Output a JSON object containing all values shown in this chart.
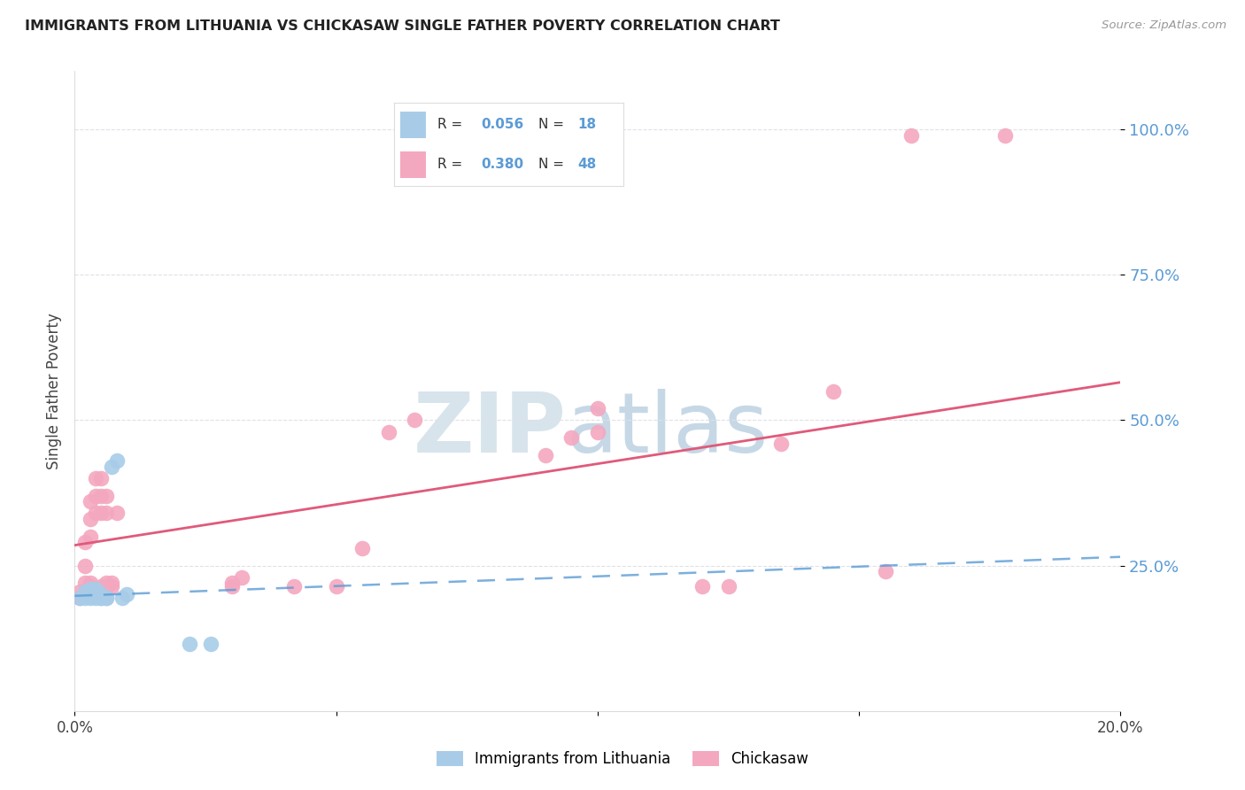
{
  "title": "IMMIGRANTS FROM LITHUANIA VS CHICKASAW SINGLE FATHER POVERTY CORRELATION CHART",
  "source": "Source: ZipAtlas.com",
  "ylabel": "Single Father Poverty",
  "xlim": [
    0.0,
    0.2
  ],
  "ylim": [
    0.0,
    1.1
  ],
  "yticks": [
    0.25,
    0.5,
    0.75,
    1.0
  ],
  "ytick_labels": [
    "25.0%",
    "50.0%",
    "75.0%",
    "100.0%"
  ],
  "xticks": [
    0.0,
    0.05,
    0.1,
    0.15,
    0.2
  ],
  "xtick_labels": [
    "0.0%",
    "",
    "",
    "",
    "20.0%"
  ],
  "legend_blue_r": "0.056",
  "legend_blue_n": "18",
  "legend_pink_r": "0.380",
  "legend_pink_n": "48",
  "legend_label_blue": "Immigrants from Lithuania",
  "legend_label_pink": "Chickasaw",
  "blue_color": "#a8cce8",
  "pink_color": "#f4a8bf",
  "blue_line_color": "#5b9bd5",
  "pink_line_color": "#e05a7a",
  "label_color": "#5b9bd5",
  "watermark_color": "#dce8f0",
  "background_color": "#ffffff",
  "grid_color": "#e0e0e8",
  "blue_scatter": [
    [
      0.001,
      0.195
    ],
    [
      0.002,
      0.195
    ],
    [
      0.002,
      0.205
    ],
    [
      0.003,
      0.195
    ],
    [
      0.003,
      0.21
    ],
    [
      0.004,
      0.195
    ],
    [
      0.004,
      0.21
    ],
    [
      0.005,
      0.195
    ],
    [
      0.005,
      0.195
    ],
    [
      0.005,
      0.2
    ],
    [
      0.006,
      0.195
    ],
    [
      0.006,
      0.195
    ],
    [
      0.007,
      0.42
    ],
    [
      0.008,
      0.43
    ],
    [
      0.009,
      0.195
    ],
    [
      0.01,
      0.2
    ],
    [
      0.022,
      0.115
    ],
    [
      0.026,
      0.115
    ]
  ],
  "pink_scatter": [
    [
      0.001,
      0.195
    ],
    [
      0.001,
      0.205
    ],
    [
      0.002,
      0.2
    ],
    [
      0.002,
      0.22
    ],
    [
      0.002,
      0.25
    ],
    [
      0.002,
      0.29
    ],
    [
      0.003,
      0.2
    ],
    [
      0.003,
      0.215
    ],
    [
      0.003,
      0.22
    ],
    [
      0.003,
      0.3
    ],
    [
      0.003,
      0.33
    ],
    [
      0.003,
      0.36
    ],
    [
      0.004,
      0.2
    ],
    [
      0.004,
      0.21
    ],
    [
      0.004,
      0.34
    ],
    [
      0.004,
      0.37
    ],
    [
      0.004,
      0.4
    ],
    [
      0.005,
      0.2
    ],
    [
      0.005,
      0.215
    ],
    [
      0.005,
      0.34
    ],
    [
      0.005,
      0.37
    ],
    [
      0.005,
      0.4
    ],
    [
      0.006,
      0.215
    ],
    [
      0.006,
      0.22
    ],
    [
      0.006,
      0.34
    ],
    [
      0.006,
      0.37
    ],
    [
      0.007,
      0.215
    ],
    [
      0.007,
      0.22
    ],
    [
      0.008,
      0.34
    ],
    [
      0.03,
      0.215
    ],
    [
      0.03,
      0.22
    ],
    [
      0.032,
      0.23
    ],
    [
      0.042,
      0.215
    ],
    [
      0.05,
      0.215
    ],
    [
      0.055,
      0.28
    ],
    [
      0.06,
      0.48
    ],
    [
      0.065,
      0.5
    ],
    [
      0.09,
      0.44
    ],
    [
      0.095,
      0.47
    ],
    [
      0.1,
      0.48
    ],
    [
      0.1,
      0.52
    ],
    [
      0.12,
      0.215
    ],
    [
      0.125,
      0.215
    ],
    [
      0.135,
      0.46
    ],
    [
      0.145,
      0.55
    ],
    [
      0.155,
      0.24
    ],
    [
      0.16,
      0.99
    ],
    [
      0.178,
      0.99
    ]
  ],
  "blue_trendline_x": [
    0.0,
    0.2
  ],
  "blue_trendline_y": [
    0.198,
    0.265
  ],
  "pink_trendline_x": [
    0.0,
    0.2
  ],
  "pink_trendline_y": [
    0.285,
    0.565
  ]
}
